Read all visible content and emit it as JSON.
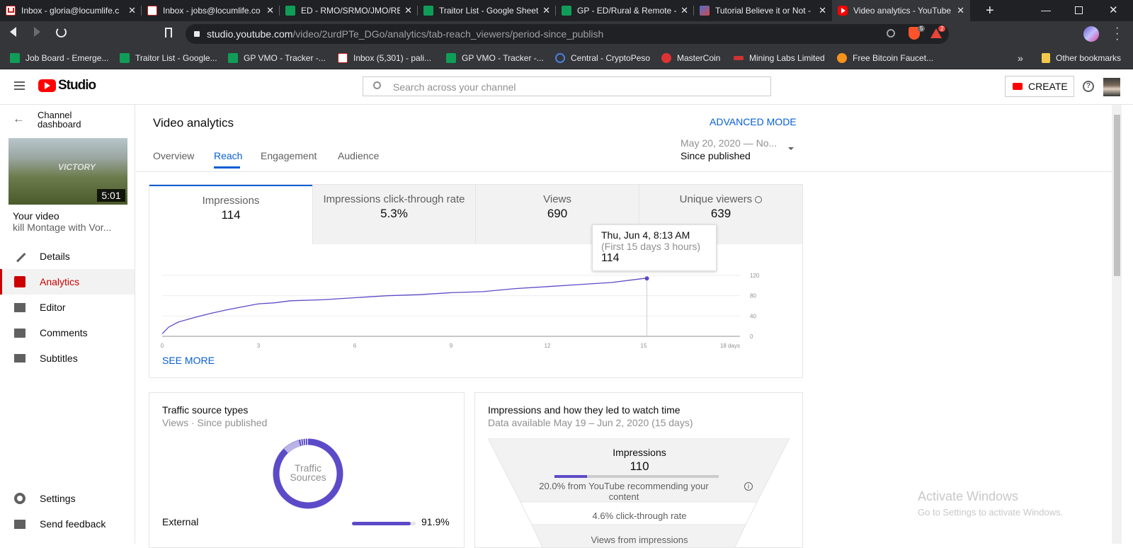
{
  "browser": {
    "tabs": [
      {
        "title": "Inbox - gloria@locumlife.c",
        "icon": "gmail-icon"
      },
      {
        "title": "Inbox - jobs@locumlife.co",
        "icon": "gmail-icon"
      },
      {
        "title": "ED - RMO/SRMO/JMO/RE",
        "icon": "sheets-icon"
      },
      {
        "title": "Traitor List - Google Sheet",
        "icon": "sheets-icon"
      },
      {
        "title": "GP - ED/Rural & Remote -",
        "icon": "sheets-icon"
      },
      {
        "title": "Tutorial Believe it or Not -",
        "icon": "shield-icon"
      },
      {
        "title": "Video analytics - YouTube",
        "icon": "youtube-icon"
      }
    ],
    "url_host": "studio.youtube.com",
    "url_path": "/video/2urdPTe_DGo/analytics/tab-reach_viewers/period-since_publish",
    "brave_badge": "5",
    "alert_badge": "2",
    "bookmarks": [
      {
        "label": "Job Board - Emerge...",
        "icon": "sheets-icon"
      },
      {
        "label": "Traitor List - Google...",
        "icon": "sheets-icon"
      },
      {
        "label": "GP VMO - Tracker -...",
        "icon": "sheets-icon"
      },
      {
        "label": "Inbox (5,301) - pali...",
        "icon": "gmail-icon"
      },
      {
        "label": "GP VMO - Tracker -...",
        "icon": "sheets-icon"
      },
      {
        "label": "Central - CryptoPeso",
        "icon": "crypto-icon"
      },
      {
        "label": "MasterCoin",
        "icon": "mastercoin-icon"
      },
      {
        "label": "Mining Labs Limited",
        "icon": "mining-icon"
      },
      {
        "label": "Free Bitcoin Faucet...",
        "icon": "bitcoin-icon"
      }
    ],
    "more_bookmarks": "»",
    "other_bookmarks": "Other bookmarks"
  },
  "header": {
    "logo_text": "Studio",
    "search_placeholder": "Search across your channel",
    "create_label": "CREATE"
  },
  "sidebar": {
    "back_label": "Channel dashboard",
    "duration": "5:01",
    "your_video_label": "Your video",
    "video_title": "kill Montage with Vor...",
    "items": [
      {
        "label": "Details",
        "icon": "pencil-icon"
      },
      {
        "label": "Analytics",
        "icon": "analytics-icon"
      },
      {
        "label": "Editor",
        "icon": "clapper-icon"
      },
      {
        "label": "Comments",
        "icon": "comment-icon"
      },
      {
        "label": "Subtitles",
        "icon": "subtitles-icon"
      }
    ],
    "settings_label": "Settings",
    "feedback_label": "Send feedback"
  },
  "analytics": {
    "title": "Video analytics",
    "advanced_mode": "ADVANCED MODE",
    "tabs": [
      "Overview",
      "Reach",
      "Engagement",
      "Audience"
    ],
    "active_tab": "Reach",
    "date_range": "May 20, 2020 — No...",
    "period_label": "Since published",
    "metrics": [
      {
        "label": "Impressions",
        "value": "114"
      },
      {
        "label": "Impressions click-through rate",
        "value": "5.3%"
      },
      {
        "label": "Views",
        "value": "690"
      },
      {
        "label": "Unique viewers",
        "value": "639"
      }
    ],
    "tooltip": {
      "date": "Thu, Jun 4, 8:13 AM",
      "range": "(First 15 days 3 hours)",
      "value": "114"
    },
    "see_more": "SEE MORE"
  },
  "chart_data": {
    "type": "line",
    "title": "",
    "xlabel": "",
    "ylabel": "",
    "x_ticks": [
      "0",
      "3",
      "6",
      "9",
      "12",
      "15",
      "18 days"
    ],
    "y_ticks": [
      "0",
      "40",
      "80",
      "120"
    ],
    "xlim": [
      0,
      18
    ],
    "ylim": [
      0,
      120
    ],
    "grid": true,
    "x": [
      0,
      0.2,
      0.5,
      1,
      1.5,
      2,
      2.5,
      3,
      3.5,
      4,
      5,
      6,
      7,
      8,
      9,
      10,
      11,
      12,
      13,
      14,
      15,
      15.1
    ],
    "y": [
      5,
      18,
      28,
      37,
      45,
      52,
      58,
      64,
      66,
      70,
      72,
      76,
      80,
      82,
      86,
      88,
      94,
      98,
      102,
      106,
      114,
      114
    ]
  },
  "traffic": {
    "title": "Traffic source types",
    "subtitle": "Views · Since published",
    "donut_label": "Traffic Sources",
    "rows": [
      {
        "label": "External",
        "value": "91.9%",
        "fraction": 0.919
      }
    ]
  },
  "funnel": {
    "title": "Impressions and how they led to watch time",
    "subtitle": "Data available May 19 – Jun 2, 2020 (15 days)",
    "impressions_label": "Impressions",
    "impressions_value": "110",
    "recommend_text": "20.0% from YouTube recommending your content",
    "recommend_fraction": 0.2,
    "ctr_text": "4.6% click-through rate",
    "next_text": "Views from impressions"
  },
  "watermark": {
    "line1": "Activate Windows",
    "line2": "Go to Settings to activate Windows."
  },
  "colors": {
    "accent": "#065fd4",
    "line": "#5c4bc8",
    "brand_red": "#ff0000",
    "donut": "#5c4bc8"
  }
}
